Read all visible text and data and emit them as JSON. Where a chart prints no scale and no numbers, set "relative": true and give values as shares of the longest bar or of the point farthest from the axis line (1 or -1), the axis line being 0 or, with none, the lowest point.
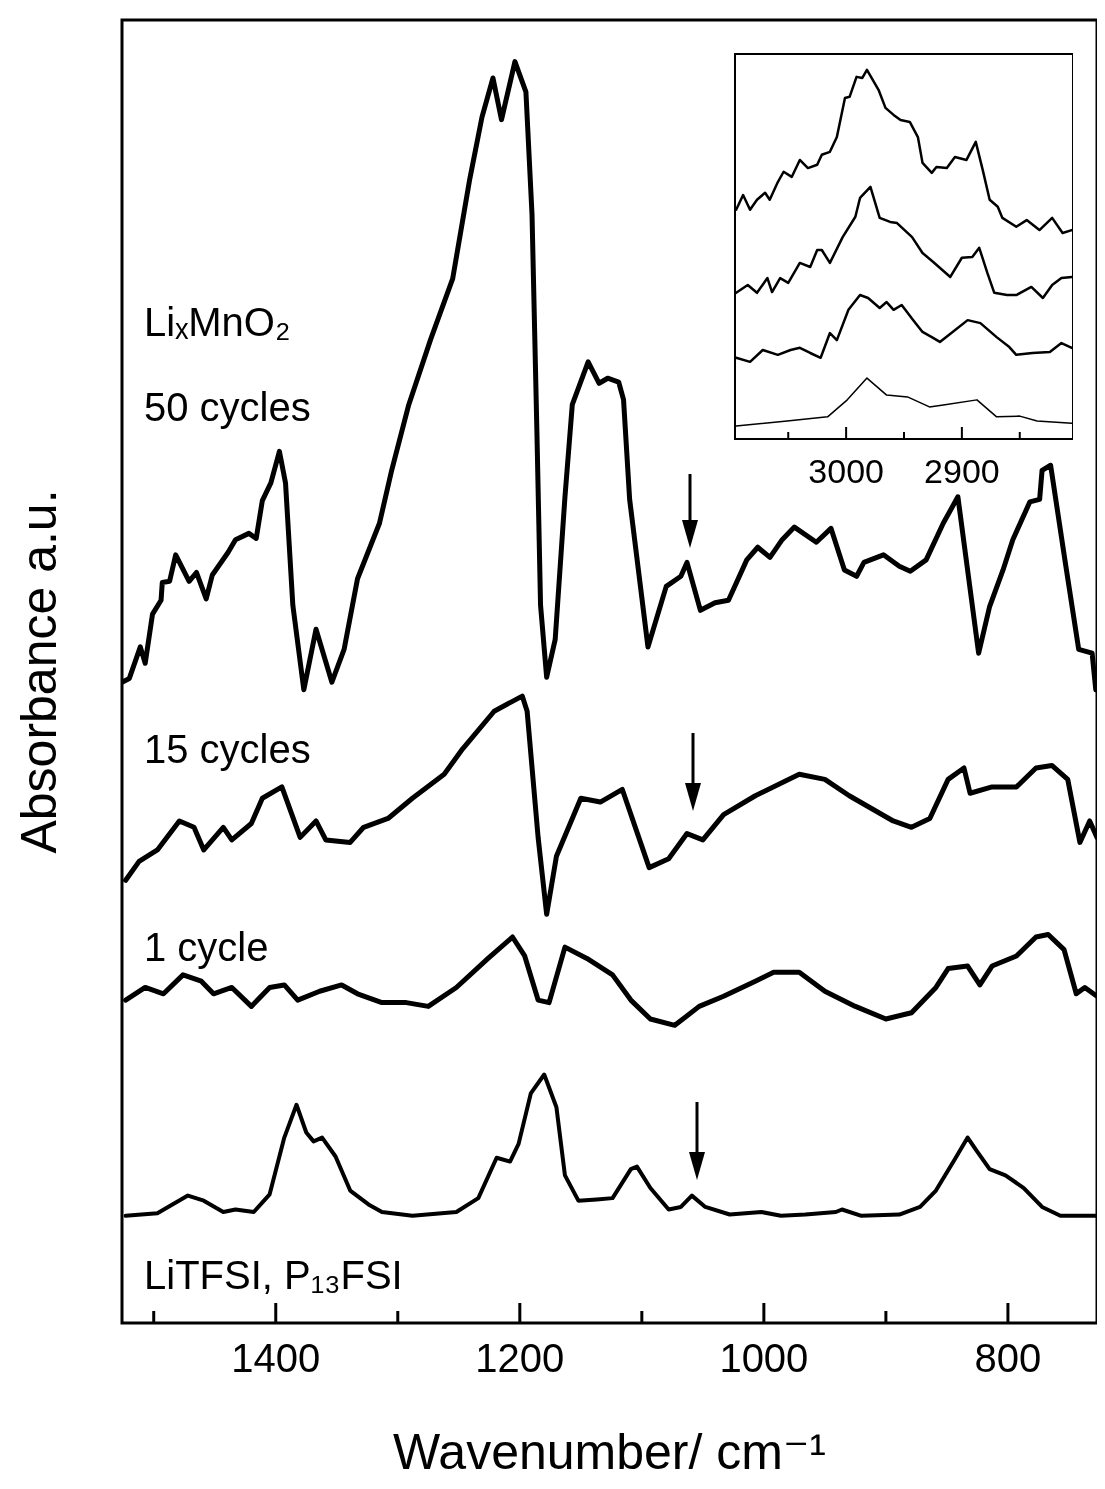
{
  "chart_data": [
    {
      "type": "line",
      "xlabel": "Wavenumber/ cm⁻¹",
      "ylabel": "Absorbance a.u.",
      "relative": true,
      "xlim": [
        1526,
        727
      ],
      "xticks": [
        {
          "value": 1500,
          "label": null
        },
        1400,
        {
          "value": 1300,
          "label": null
        },
        1200,
        {
          "value": 1100,
          "label": null
        },
        1000,
        {
          "value": 900,
          "label": null
        },
        800
      ],
      "annotations": [
        "LiₓMnO₂"
      ],
      "series": [
        {
          "name": "50 cycles",
          "color": "#000000",
          "x": [
            1526,
            1520,
            1511,
            1507,
            1501,
            1494,
            1493,
            1487,
            1482,
            1471,
            1465,
            1457,
            1452,
            1439,
            1433,
            1422,
            1416,
            1411,
            1404,
            1397,
            1392,
            1386,
            1377,
            1367,
            1354,
            1344,
            1333,
            1315,
            1305,
            1291,
            1273,
            1255,
            1241,
            1231,
            1222,
            1215,
            1204,
            1195,
            1190,
            1186,
            1183,
            1178,
            1171,
            1163,
            1157,
            1144,
            1135,
            1128,
            1119,
            1115,
            1110,
            1095,
            1080,
            1068,
            1063,
            1052,
            1040,
            1029,
            1014,
            1005,
            995,
            985,
            975,
            957,
            945,
            934,
            924,
            918,
            902,
            889,
            880,
            867,
            853,
            841,
            824,
            815,
            804,
            796,
            782,
            774,
            772,
            765,
            753,
            742,
            731,
            728
          ],
          "values": [
            0.508,
            0.511,
            0.536,
            0.523,
            0.562,
            0.573,
            0.587,
            0.588,
            0.609,
            0.588,
            0.595,
            0.574,
            0.593,
            0.611,
            0.621,
            0.626,
            0.622,
            0.652,
            0.666,
            0.691,
            0.666,
            0.569,
            0.502,
            0.55,
            0.508,
            0.534,
            0.59,
            0.634,
            0.676,
            0.728,
            0.78,
            0.828,
            0.907,
            0.956,
            0.987,
            0.954,
            1,
            0.976,
            0.879,
            0.707,
            0.569,
            0.512,
            0.542,
            0.655,
            0.728,
            0.762,
            0.745,
            0.749,
            0.746,
            0.732,
            0.653,
            0.536,
            0.584,
            0.592,
            0.603,
            0.565,
            0.571,
            0.573,
            0.605,
            0.615,
            0.607,
            0.621,
            0.631,
            0.619,
            0.63,
            0.597,
            0.592,
            0.603,
            0.609,
            0.6,
            0.596,
            0.605,
            0.634,
            0.655,
            0.531,
            0.568,
            0.597,
            0.621,
            0.651,
            0.653,
            0.676,
            0.68,
            0.603,
            0.534,
            0.531,
            0.502
          ]
        },
        {
          "name": "15 cycles",
          "color": "#000000",
          "x": [
            1523,
            1512,
            1497,
            1479,
            1467,
            1459,
            1443,
            1436,
            1420,
            1411,
            1395,
            1380,
            1367,
            1359,
            1339,
            1328,
            1308,
            1288,
            1262,
            1247,
            1221,
            1198,
            1194,
            1185,
            1178,
            1170,
            1150,
            1134,
            1116,
            1094,
            1078,
            1063,
            1050,
            1033,
            1007,
            971,
            950,
            930,
            894,
            879,
            864,
            849,
            836,
            831,
            813,
            793,
            777,
            764,
            751,
            741,
            733,
            727
          ],
          "values": [
            0.351,
            0.366,
            0.375,
            0.398,
            0.393,
            0.375,
            0.393,
            0.383,
            0.396,
            0.416,
            0.425,
            0.385,
            0.398,
            0.383,
            0.381,
            0.393,
            0.4,
            0.416,
            0.435,
            0.455,
            0.485,
            0.497,
            0.485,
            0.385,
            0.324,
            0.37,
            0.416,
            0.413,
            0.423,
            0.361,
            0.368,
            0.388,
            0.383,
            0.403,
            0.418,
            0.435,
            0.431,
            0.418,
            0.398,
            0.393,
            0.4,
            0.431,
            0.44,
            0.42,
            0.425,
            0.425,
            0.44,
            0.442,
            0.431,
            0.381,
            0.398,
            0.385
          ]
        },
        {
          "name": "1 cycle",
          "color": "#000000",
          "x": [
            1523,
            1507,
            1492,
            1476,
            1461,
            1451,
            1436,
            1420,
            1405,
            1393,
            1382,
            1364,
            1346,
            1333,
            1313,
            1293,
            1275,
            1252,
            1226,
            1206,
            1196,
            1185,
            1176,
            1163,
            1145,
            1124,
            1109,
            1093,
            1073,
            1053,
            1033,
            1007,
            992,
            971,
            950,
            925,
            900,
            879,
            859,
            849,
            833,
            823,
            813,
            793,
            777,
            767,
            754,
            744,
            737,
            727
          ],
          "values": [
            0.256,
            0.266,
            0.261,
            0.276,
            0.271,
            0.261,
            0.266,
            0.251,
            0.266,
            0.268,
            0.256,
            0.263,
            0.268,
            0.261,
            0.254,
            0.254,
            0.251,
            0.266,
            0.289,
            0.306,
            0.291,
            0.256,
            0.254,
            0.298,
            0.289,
            0.276,
            0.256,
            0.241,
            0.236,
            0.251,
            0.259,
            0.271,
            0.278,
            0.278,
            0.263,
            0.251,
            0.241,
            0.246,
            0.266,
            0.281,
            0.283,
            0.268,
            0.283,
            0.291,
            0.306,
            0.308,
            0.296,
            0.261,
            0.266,
            0.259
          ]
        },
        {
          "name": "LiTFSI, P₁₃FSI",
          "color": "#000000",
          "x": [
            1523,
            1497,
            1472,
            1459,
            1443,
            1433,
            1418,
            1405,
            1393,
            1383,
            1375,
            1369,
            1362,
            1351,
            1339,
            1324,
            1313,
            1288,
            1252,
            1234,
            1219,
            1208,
            1201,
            1191,
            1180,
            1170,
            1163,
            1152,
            1137,
            1124,
            1109,
            1104,
            1093,
            1078,
            1068,
            1059,
            1048,
            1028,
            1002,
            986,
            966,
            941,
            936,
            920,
            889,
            872,
            859,
            844,
            833,
            826,
            815,
            802,
            787,
            772,
            757,
            727
          ],
          "values": [
            0.085,
            0.087,
            0.101,
            0.097,
            0.088,
            0.09,
            0.088,
            0.102,
            0.147,
            0.173,
            0.151,
            0.144,
            0.147,
            0.132,
            0.105,
            0.094,
            0.088,
            0.085,
            0.088,
            0.099,
            0.131,
            0.128,
            0.142,
            0.182,
            0.197,
            0.171,
            0.117,
            0.097,
            0.098,
            0.099,
            0.122,
            0.124,
            0.107,
            0.09,
            0.092,
            0.101,
            0.092,
            0.086,
            0.088,
            0.085,
            0.086,
            0.088,
            0.09,
            0.085,
            0.086,
            0.092,
            0.105,
            0.129,
            0.147,
            0.137,
            0.122,
            0.117,
            0.107,
            0.092,
            0.085,
            0.085
          ]
        }
      ]
    },
    {
      "type": "line",
      "relative": true,
      "tick_labels": "x",
      "xlim": [
        3096,
        2804
      ],
      "xticks": [
        {
          "value": 3050,
          "label": null
        },
        3000,
        {
          "value": 2950,
          "label": null
        },
        2900,
        {
          "value": 2850,
          "label": null
        }
      ],
      "series": [
        {
          "color": "#000000",
          "x": [
            3095,
            3089,
            3083,
            3077,
            3070,
            3066,
            3059,
            3054,
            3047,
            3040,
            3033,
            3025,
            3021,
            3014,
            3008,
            3001,
            2997,
            2991,
            2986,
            2982,
            2977,
            2972,
            2966,
            2959,
            2953,
            2945,
            2938,
            2934,
            2926,
            2922,
            2913,
            2906,
            2896,
            2888,
            2882,
            2876,
            2869,
            2865,
            2853,
            2844,
            2833,
            2822,
            2813,
            2805
          ],
          "values": [
            0.621,
            0.661,
            0.621,
            0.648,
            0.667,
            0.648,
            0.696,
            0.724,
            0.71,
            0.756,
            0.734,
            0.743,
            0.77,
            0.778,
            0.818,
            0.924,
            0.927,
            0.981,
            0.978,
            1,
            0.973,
            0.946,
            0.897,
            0.878,
            0.864,
            0.859,
            0.818,
            0.748,
            0.721,
            0.737,
            0.734,
            0.764,
            0.756,
            0.805,
            0.729,
            0.648,
            0.629,
            0.599,
            0.575,
            0.593,
            0.566,
            0.599,
            0.558,
            0.566
          ]
        },
        {
          "color": "#000000",
          "x": [
            3095,
            3085,
            3077,
            3068,
            3064,
            3057,
            3050,
            3040,
            3031,
            3025,
            3021,
            3014,
            3003,
            2992,
            2988,
            2979,
            2971,
            2962,
            2956,
            2943,
            2934,
            2925,
            2910,
            2900,
            2891,
            2885,
            2878,
            2872,
            2861,
            2853,
            2840,
            2830,
            2822,
            2814,
            2805
          ],
          "values": [
            0.396,
            0.417,
            0.396,
            0.436,
            0.398,
            0.436,
            0.423,
            0.477,
            0.466,
            0.512,
            0.512,
            0.477,
            0.547,
            0.602,
            0.653,
            0.683,
            0.599,
            0.588,
            0.585,
            0.547,
            0.504,
            0.48,
            0.439,
            0.491,
            0.493,
            0.518,
            0.45,
            0.396,
            0.39,
            0.39,
            0.412,
            0.382,
            0.417,
            0.436,
            0.439
          ]
        },
        {
          "color": "#000000",
          "x": [
            3095,
            3083,
            3072,
            3059,
            3048,
            3040,
            3031,
            3022,
            3014,
            3008,
            2998,
            2988,
            2981,
            2971,
            2965,
            2959,
            2952,
            2942,
            2934,
            2926,
            2919,
            2908,
            2895,
            2884,
            2870,
            2859,
            2853,
            2839,
            2824,
            2814,
            2805
          ],
          "values": [
            0.22,
            0.209,
            0.241,
            0.228,
            0.241,
            0.247,
            0.233,
            0.22,
            0.287,
            0.268,
            0.35,
            0.39,
            0.382,
            0.355,
            0.371,
            0.35,
            0.363,
            0.322,
            0.29,
            0.276,
            0.263,
            0.29,
            0.322,
            0.314,
            0.276,
            0.249,
            0.228,
            0.233,
            0.236,
            0.26,
            0.247
          ]
        },
        {
          "color": "#000000",
          "x": [
            3095,
            3051,
            3016,
            2999,
            2982,
            2965,
            2947,
            2928,
            2916,
            2887,
            2870,
            2850,
            2835,
            2805
          ],
          "values": [
            0.035,
            0.049,
            0.06,
            0.106,
            0.165,
            0.119,
            0.114,
            0.087,
            0.092,
            0.106,
            0.06,
            0.062,
            0.049,
            0.043
          ]
        }
      ]
    }
  ]
}
